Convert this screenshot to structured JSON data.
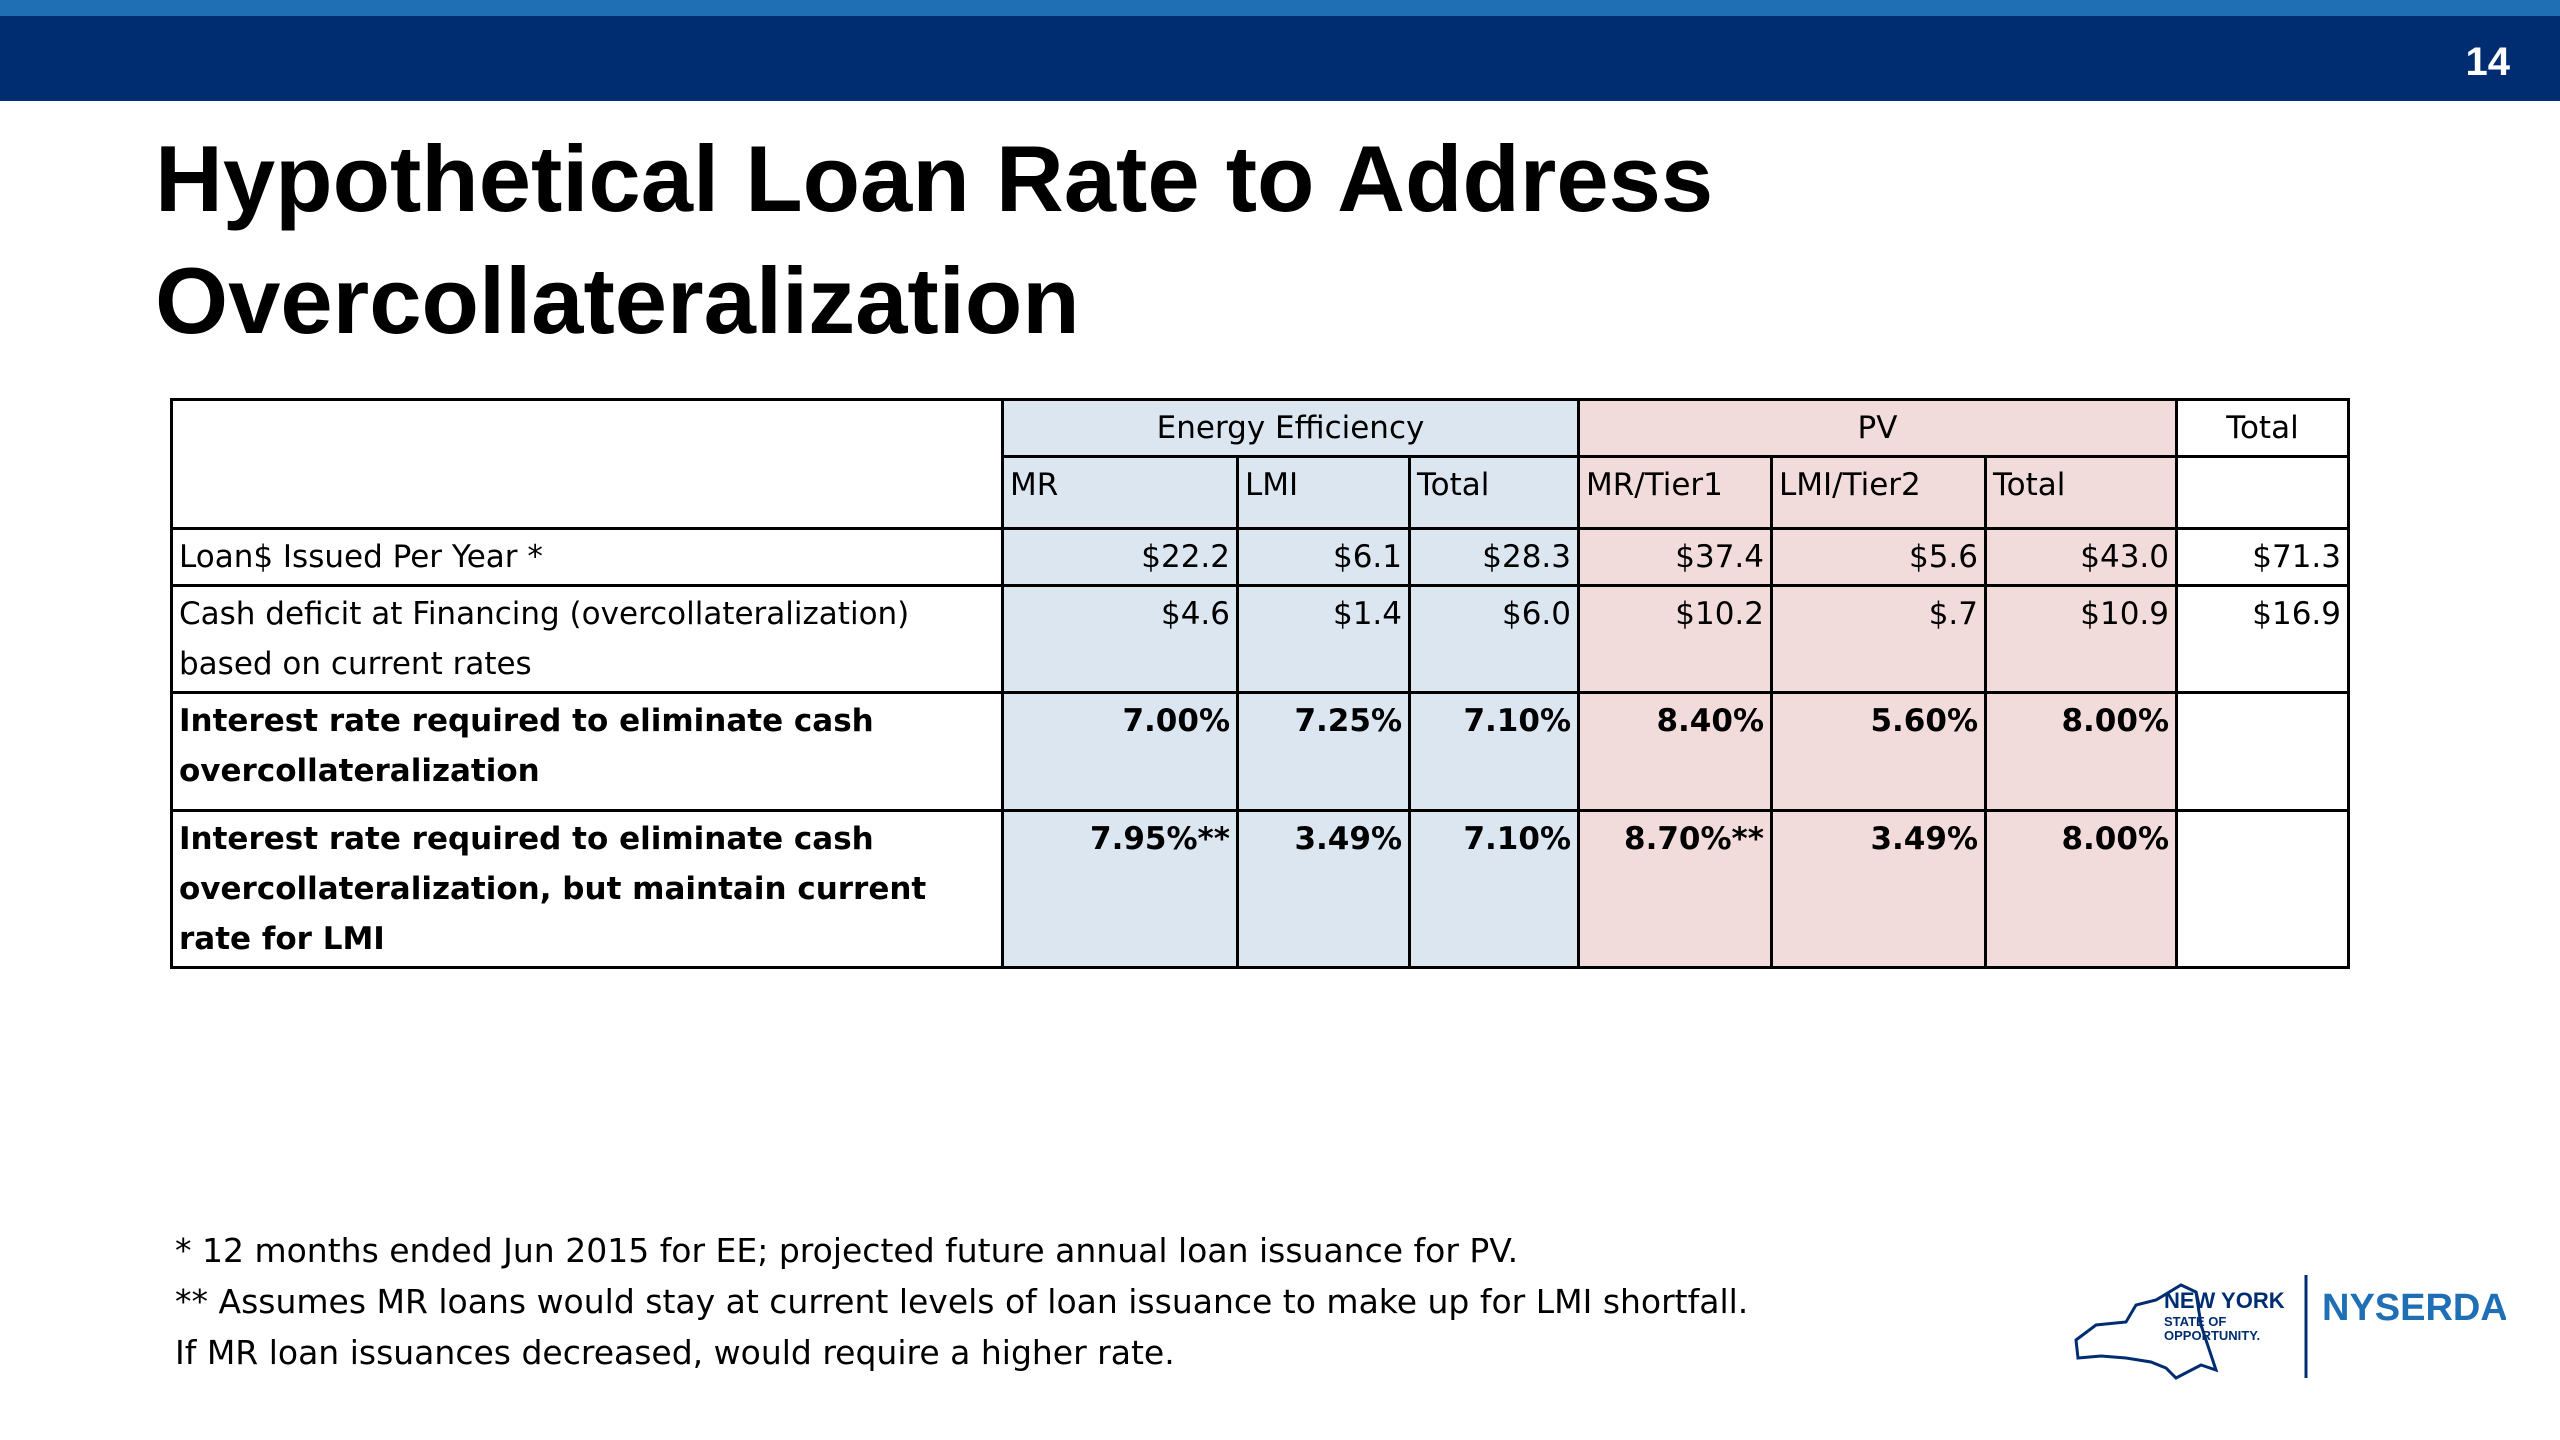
{
  "header": {
    "page_number": "14"
  },
  "title_lines": [
    "Hypothetical Loan Rate to Address",
    "Overcollateralization"
  ],
  "table": {
    "groups": [
      "Energy Efficiency",
      "PV",
      "Total"
    ],
    "subheaders": [
      "MR",
      "LMI",
      "Total",
      "MR/Tier1",
      "LMI/Tier2",
      "Total"
    ],
    "rows": [
      {
        "label": "Loan$ Issued Per Year *",
        "cells": [
          "$22.2",
          "$6.1",
          "$28.3",
          "$37.4",
          "$5.6",
          "$43.0",
          "$71.3"
        ]
      },
      {
        "label": "Cash deficit at Financing (overcollateralization) based on current rates",
        "cells": [
          "$4.6",
          "$1.4",
          "$6.0",
          "$10.2",
          "$.7",
          "$10.9",
          "$16.9"
        ]
      },
      {
        "label": "Interest rate required to eliminate cash overcollateralization",
        "cells": [
          "7.00%",
          "7.25%",
          "7.10%",
          "8.40%",
          "5.60%",
          "8.00%"
        ]
      },
      {
        "label": "Interest rate required to eliminate cash overcollateralization, but maintain current rate for LMI",
        "cells": [
          "7.95%**",
          "3.49%",
          "7.10%",
          "8.70%**",
          "3.49%",
          "8.00%"
        ]
      }
    ]
  },
  "footnotes": [
    "* 12 months ended Jun 2015 for EE; projected future annual loan issuance for PV.",
    "** Assumes MR loans would stay at current levels of loan issuance to make up for LMI shortfall.",
    "If MR loan issuances decreased, would require a higher rate."
  ],
  "logo": {
    "state_lines": [
      "NEW YORK",
      "STATE OF",
      "OPPORTUNITY."
    ],
    "agency": "NYSERDA"
  }
}
